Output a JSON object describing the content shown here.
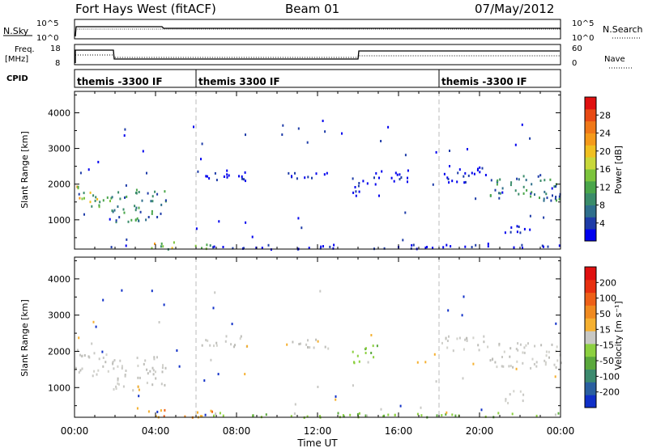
{
  "header": {
    "station": "Fort Hays West (fitACF)",
    "beam": "Beam 01",
    "date": "07/May/2012"
  },
  "top_panels": {
    "nsky_label": "N.Sky",
    "nsearch_label": "N.Search",
    "noise_tick_top": "10^5",
    "noise_tick_bottom": "10^0",
    "freq_label": "Freq.",
    "freq_unit": "[MHz]",
    "freq_tick_top": "18",
    "freq_tick_bottom": "8",
    "nave_label": "Nave",
    "nave_tick_top": "60",
    "nave_tick_bottom": "0",
    "cpid_label": "CPID",
    "cpid_segments": [
      {
        "label": "themis -3300 IF",
        "start_hour": 0,
        "end_hour": 6
      },
      {
        "label": "themis 3300 IF",
        "start_hour": 6,
        "end_hour": 18
      },
      {
        "label": "themis -3300 IF",
        "start_hour": 18,
        "end_hour": 24
      }
    ]
  },
  "chart_data": [
    {
      "type": "heatmap",
      "name": "power",
      "ylabel": "Slant Range [km]",
      "xlabel": "Time UT",
      "x_ticks": [
        "00:00",
        "04:00",
        "08:00",
        "12:00",
        "16:00",
        "20:00",
        "00:00"
      ],
      "y_ticks": [
        1000,
        2000,
        3000,
        4000
      ],
      "xlim_hours": [
        0,
        24
      ],
      "ylim_km": [
        180,
        4600
      ],
      "colorbar": {
        "label": "Power [dB]",
        "ticks": [
          "4",
          "8",
          "12",
          "16",
          "20",
          "24",
          "28"
        ],
        "colors": [
          "#0000ee",
          "#1e3ca8",
          "#2f6f8c",
          "#3a8c6a",
          "#4aa64a",
          "#7cc43c",
          "#c8d83a",
          "#f0c020",
          "#f59a1a",
          "#f07818",
          "#e84a14",
          "#e01010"
        ]
      },
      "regions": [
        {
          "t0": 0.0,
          "t1": 1.8,
          "r0": 1350,
          "r1": 2000,
          "level": "high"
        },
        {
          "t0": 1.8,
          "t1": 4.5,
          "r0": 950,
          "r1": 1900,
          "level": "mid"
        },
        {
          "t0": 3.5,
          "t1": 6.8,
          "r0": 200,
          "r1": 420,
          "level": "high"
        },
        {
          "t0": 6.8,
          "t1": 24.0,
          "r0": 200,
          "r1": 330,
          "level": "low"
        },
        {
          "t0": 6.2,
          "t1": 9.0,
          "r0": 2150,
          "r1": 2450,
          "level": "low"
        },
        {
          "t0": 10.5,
          "t1": 12.5,
          "r0": 2100,
          "r1": 2400,
          "level": "low"
        },
        {
          "t0": 13.7,
          "t1": 15.0,
          "r0": 1700,
          "r1": 2200,
          "level": "low"
        },
        {
          "t0": 14.5,
          "t1": 16.5,
          "r0": 2100,
          "r1": 2450,
          "level": "low"
        },
        {
          "t0": 18.0,
          "t1": 20.5,
          "r0": 2050,
          "r1": 2500,
          "level": "low"
        },
        {
          "t0": 20.5,
          "t1": 24.0,
          "r0": 1550,
          "r1": 2300,
          "level": "mid"
        },
        {
          "t0": 21.2,
          "t1": 22.5,
          "r0": 600,
          "r1": 950,
          "level": "low"
        }
      ]
    },
    {
      "type": "heatmap",
      "name": "velocity",
      "ylabel": "Slant Range [km]",
      "xlabel": "Time UT",
      "x_ticks": [
        "00:00",
        "04:00",
        "08:00",
        "12:00",
        "16:00",
        "20:00",
        "00:00"
      ],
      "y_ticks": [
        1000,
        2000,
        3000,
        4000
      ],
      "xlim_hours": [
        0,
        24
      ],
      "ylim_km": [
        180,
        4600
      ],
      "colorbar": {
        "label": "Velocity [m s⁻¹]",
        "ticks": [
          "200",
          "100",
          "50",
          "15",
          "-15",
          "-50",
          "-100",
          "-200"
        ],
        "colors": [
          "#1030c8",
          "#2a5fa0",
          "#3c8a6e",
          "#5aa83c",
          "#8cd040",
          "#c8c8c4",
          "#f5b030",
          "#f08a20",
          "#ee6018",
          "#e83010",
          "#e01010"
        ]
      },
      "regions": [
        {
          "t0": 0.0,
          "t1": 1.8,
          "r0": 1350,
          "r1": 2000,
          "level": "gray"
        },
        {
          "t0": 1.8,
          "t1": 4.5,
          "r0": 950,
          "r1": 1900,
          "level": "gray"
        },
        {
          "t0": 3.5,
          "t1": 6.8,
          "r0": 200,
          "r1": 420,
          "level": "orange"
        },
        {
          "t0": 6.8,
          "t1": 24.0,
          "r0": 200,
          "r1": 330,
          "level": "green"
        },
        {
          "t0": 6.2,
          "t1": 9.0,
          "r0": 2150,
          "r1": 2450,
          "level": "gray"
        },
        {
          "t0": 10.5,
          "t1": 12.5,
          "r0": 2100,
          "r1": 2400,
          "level": "gray"
        },
        {
          "t0": 13.7,
          "t1": 15.0,
          "r0": 1700,
          "r1": 2200,
          "level": "green"
        },
        {
          "t0": 18.0,
          "t1": 20.5,
          "r0": 2050,
          "r1": 2500,
          "level": "gray"
        },
        {
          "t0": 20.5,
          "t1": 24.0,
          "r0": 1550,
          "r1": 2300,
          "level": "gray"
        },
        {
          "t0": 21.2,
          "t1": 22.5,
          "r0": 600,
          "r1": 950,
          "level": "gray"
        }
      ]
    }
  ]
}
